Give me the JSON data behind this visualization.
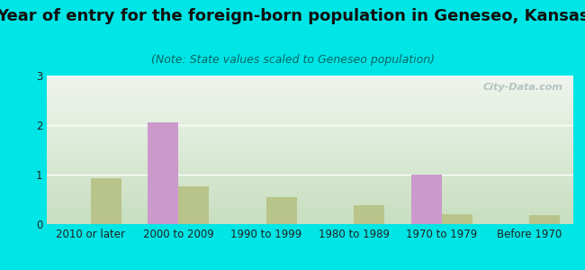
{
  "title": "Year of entry for the foreign-born population in Geneseo, Kansas",
  "subtitle": "(Note: State values scaled to Geneseo population)",
  "categories": [
    "2010 or later",
    "2000 to 2009",
    "1990 to 1999",
    "1980 to 1989",
    "1970 to 1979",
    "Before 1970"
  ],
  "geneseo_values": [
    0,
    2.05,
    0,
    0,
    1.0,
    0
  ],
  "kansas_values": [
    0.93,
    0.77,
    0.55,
    0.38,
    0.2,
    0.18
  ],
  "geneseo_color": "#cc99cc",
  "kansas_color": "#b8c48a",
  "background_outer": "#00e5e5",
  "background_inner_top": "#f0f5ee",
  "background_inner_bottom": "#c8dfc0",
  "ylim": [
    0,
    3
  ],
  "yticks": [
    0,
    1,
    2,
    3
  ],
  "bar_width": 0.35,
  "title_fontsize": 13,
  "subtitle_fontsize": 9,
  "tick_fontsize": 8.5,
  "legend_fontsize": 10,
  "watermark": "City-Data.com"
}
